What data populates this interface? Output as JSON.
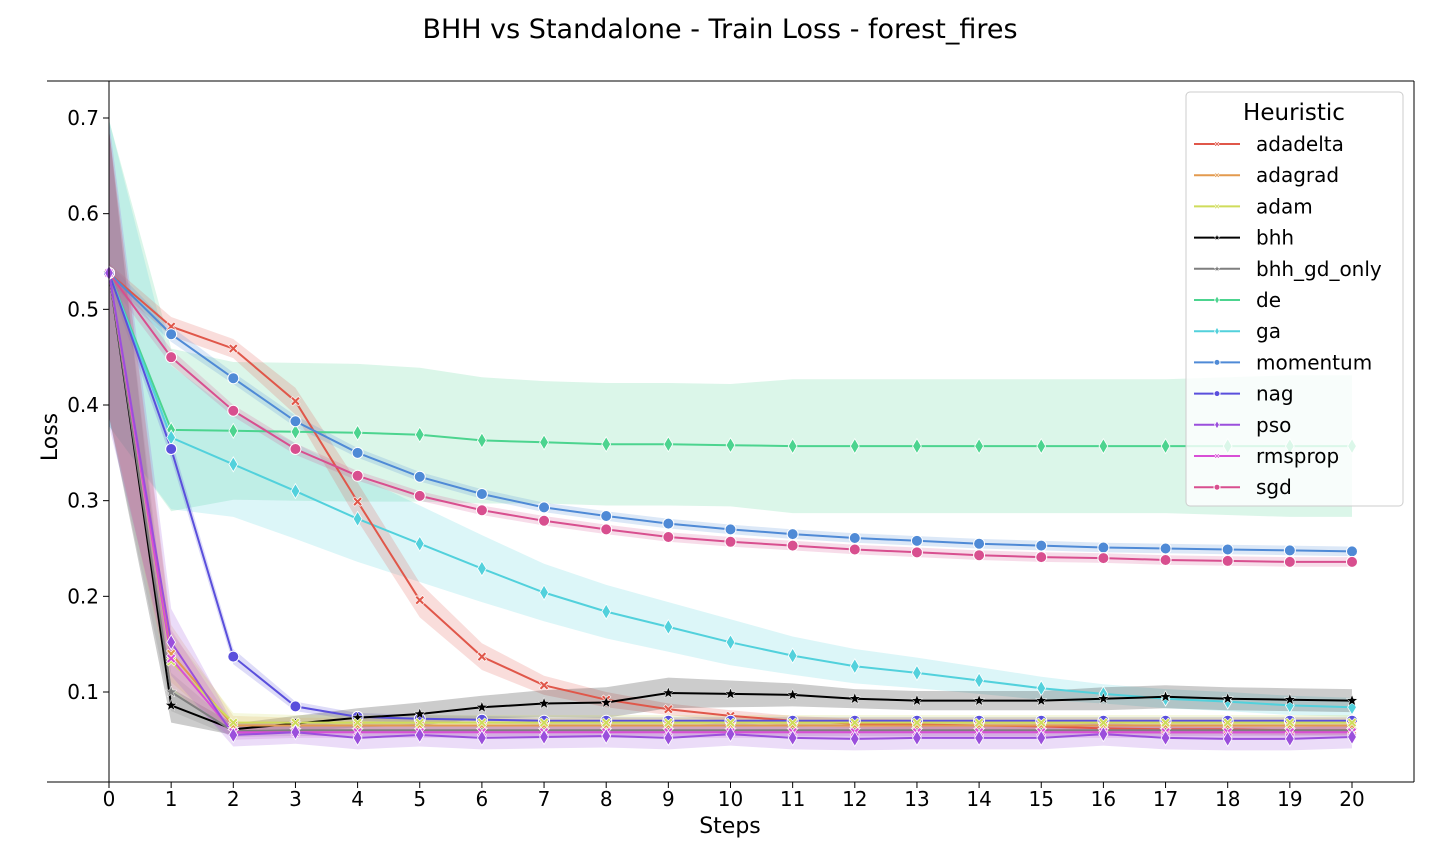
{
  "chart_data": {
    "type": "line",
    "title": "BHH vs Standalone - Train Loss - forest_fires",
    "xlabel": "Steps",
    "ylabel": "Loss",
    "xlim": [
      -1,
      21
    ],
    "ylim": [
      -0.005,
      0.735
    ],
    "x": [
      0,
      1,
      2,
      3,
      4,
      5,
      6,
      7,
      8,
      9,
      10,
      11,
      12,
      13,
      14,
      15,
      16,
      17,
      18,
      19,
      20
    ],
    "y_ticks": [
      "0.1",
      "0.2",
      "0.3",
      "0.4",
      "0.5",
      "0.6",
      "0.7"
    ],
    "y_tick_values": [
      0.1,
      0.2,
      0.3,
      0.4,
      0.5,
      0.6,
      0.7
    ],
    "x_ticks": [
      "0",
      "1",
      "2",
      "3",
      "4",
      "5",
      "6",
      "7",
      "8",
      "9",
      "10",
      "11",
      "12",
      "13",
      "14",
      "15",
      "16",
      "17",
      "18",
      "19",
      "20"
    ],
    "grid": false,
    "legend": {
      "title": "Heuristic",
      "placement": "top-right"
    },
    "series": [
      {
        "name": "adadelta",
        "color": "#e0574a",
        "marker": "x",
        "values": [
          0.538,
          0.482,
          0.459,
          0.404,
          0.299,
          0.196,
          0.137,
          0.107,
          0.092,
          0.082,
          0.075,
          0.07,
          0.067,
          0.066,
          0.065,
          0.064,
          0.062,
          0.061,
          0.061,
          0.06,
          0.06
        ],
        "band": [
          0.01,
          0.01,
          0.01,
          0.014,
          0.02,
          0.018,
          0.014,
          0.01,
          0.008,
          0.006,
          0.006,
          0.005,
          0.005,
          0.005,
          0.005,
          0.005,
          0.005,
          0.005,
          0.005,
          0.005,
          0.005
        ]
      },
      {
        "name": "adagrad",
        "color": "#e39a4f",
        "marker": "x",
        "values": [
          0.538,
          0.14,
          0.065,
          0.065,
          0.065,
          0.065,
          0.065,
          0.065,
          0.065,
          0.065,
          0.065,
          0.065,
          0.065,
          0.065,
          0.065,
          0.065,
          0.065,
          0.065,
          0.065,
          0.065,
          0.065
        ],
        "band": [
          0.15,
          0.03,
          0.01,
          0.008,
          0.008,
          0.008,
          0.008,
          0.008,
          0.008,
          0.008,
          0.008,
          0.008,
          0.008,
          0.008,
          0.008,
          0.008,
          0.008,
          0.008,
          0.008,
          0.008,
          0.008
        ]
      },
      {
        "name": "adam",
        "color": "#cfdc5b",
        "marker": "x",
        "values": [
          0.538,
          0.132,
          0.068,
          0.068,
          0.068,
          0.068,
          0.068,
          0.068,
          0.068,
          0.068,
          0.068,
          0.068,
          0.068,
          0.068,
          0.068,
          0.068,
          0.068,
          0.068,
          0.068,
          0.068,
          0.068
        ],
        "band": [
          0.15,
          0.03,
          0.01,
          0.008,
          0.008,
          0.008,
          0.008,
          0.008,
          0.008,
          0.008,
          0.008,
          0.008,
          0.008,
          0.008,
          0.008,
          0.008,
          0.008,
          0.008,
          0.008,
          0.008,
          0.008
        ]
      },
      {
        "name": "bhh",
        "color": "#000000",
        "marker": "star",
        "values": [
          0.538,
          0.086,
          0.061,
          0.067,
          0.073,
          0.077,
          0.084,
          0.088,
          0.089,
          0.099,
          0.098,
          0.097,
          0.093,
          0.091,
          0.091,
          0.091,
          0.093,
          0.095,
          0.093,
          0.092,
          0.091
        ],
        "band": [
          0.15,
          0.018,
          0.006,
          0.008,
          0.01,
          0.012,
          0.012,
          0.014,
          0.016,
          0.016,
          0.014,
          0.012,
          0.01,
          0.01,
          0.01,
          0.01,
          0.012,
          0.012,
          0.012,
          0.012,
          0.012
        ]
      },
      {
        "name": "bhh_gd_only",
        "color": "#7f7f7f",
        "marker": "star",
        "values": [
          0.538,
          0.1,
          0.059,
          0.06,
          0.06,
          0.06,
          0.06,
          0.06,
          0.06,
          0.06,
          0.06,
          0.06,
          0.06,
          0.06,
          0.06,
          0.06,
          0.06,
          0.06,
          0.06,
          0.06,
          0.06
        ],
        "band": [
          0.15,
          0.02,
          0.006,
          0.006,
          0.006,
          0.006,
          0.006,
          0.006,
          0.006,
          0.006,
          0.006,
          0.006,
          0.006,
          0.006,
          0.006,
          0.006,
          0.006,
          0.006,
          0.006,
          0.006,
          0.006
        ]
      },
      {
        "name": "de",
        "color": "#4cd48f",
        "marker": "diamond",
        "values": [
          0.538,
          0.374,
          0.373,
          0.372,
          0.371,
          0.369,
          0.363,
          0.361,
          0.359,
          0.359,
          0.358,
          0.357,
          0.357,
          0.357,
          0.357,
          0.357,
          0.357,
          0.357,
          0.357,
          0.357,
          0.357
        ],
        "band": [
          0.16,
          0.085,
          0.072,
          0.072,
          0.072,
          0.07,
          0.066,
          0.064,
          0.064,
          0.064,
          0.064,
          0.07,
          0.07,
          0.07,
          0.07,
          0.07,
          0.07,
          0.07,
          0.072,
          0.074,
          0.074
        ]
      },
      {
        "name": "ga",
        "color": "#52d1dc",
        "marker": "diamond",
        "values": [
          0.538,
          0.366,
          0.338,
          0.31,
          0.281,
          0.255,
          0.229,
          0.204,
          0.184,
          0.168,
          0.152,
          0.138,
          0.127,
          0.12,
          0.112,
          0.104,
          0.098,
          0.093,
          0.09,
          0.086,
          0.084
        ],
        "band": [
          0.16,
          0.075,
          0.055,
          0.05,
          0.045,
          0.04,
          0.035,
          0.03,
          0.028,
          0.026,
          0.024,
          0.02,
          0.018,
          0.016,
          0.014,
          0.012,
          0.01,
          0.01,
          0.01,
          0.01,
          0.01
        ]
      },
      {
        "name": "momentum",
        "color": "#4f8ad6",
        "marker": "circle",
        "values": [
          0.538,
          0.474,
          0.428,
          0.383,
          0.35,
          0.325,
          0.307,
          0.293,
          0.284,
          0.276,
          0.27,
          0.265,
          0.261,
          0.258,
          0.255,
          0.253,
          0.251,
          0.25,
          0.249,
          0.248,
          0.247
        ],
        "band": [
          0.01,
          0.008,
          0.006,
          0.006,
          0.005,
          0.005,
          0.005,
          0.005,
          0.005,
          0.005,
          0.005,
          0.005,
          0.005,
          0.005,
          0.005,
          0.005,
          0.005,
          0.005,
          0.005,
          0.005,
          0.005
        ]
      },
      {
        "name": "nag",
        "color": "#5a4fdc",
        "marker": "circle",
        "values": [
          0.538,
          0.354,
          0.137,
          0.085,
          0.074,
          0.072,
          0.071,
          0.07,
          0.07,
          0.07,
          0.07,
          0.07,
          0.07,
          0.07,
          0.07,
          0.07,
          0.07,
          0.07,
          0.07,
          0.07,
          0.07
        ],
        "band": [
          0.01,
          0.01,
          0.008,
          0.005,
          0.004,
          0.004,
          0.004,
          0.004,
          0.004,
          0.004,
          0.004,
          0.004,
          0.004,
          0.004,
          0.004,
          0.004,
          0.004,
          0.004,
          0.004,
          0.004,
          0.004
        ]
      },
      {
        "name": "pso",
        "color": "#9b4fdc",
        "marker": "diamond",
        "values": [
          0.538,
          0.152,
          0.055,
          0.058,
          0.052,
          0.055,
          0.052,
          0.053,
          0.054,
          0.052,
          0.056,
          0.052,
          0.051,
          0.052,
          0.052,
          0.052,
          0.056,
          0.052,
          0.051,
          0.051,
          0.053
        ],
        "band": [
          0.16,
          0.035,
          0.012,
          0.012,
          0.012,
          0.012,
          0.012,
          0.012,
          0.012,
          0.012,
          0.012,
          0.012,
          0.012,
          0.012,
          0.012,
          0.012,
          0.012,
          0.012,
          0.012,
          0.012,
          0.012
        ]
      },
      {
        "name": "rmsprop",
        "color": "#d84fd6",
        "marker": "x",
        "values": [
          0.538,
          0.135,
          0.058,
          0.058,
          0.058,
          0.058,
          0.058,
          0.058,
          0.058,
          0.058,
          0.058,
          0.058,
          0.058,
          0.058,
          0.058,
          0.058,
          0.058,
          0.058,
          0.058,
          0.058,
          0.058
        ],
        "band": [
          0.15,
          0.03,
          0.008,
          0.006,
          0.006,
          0.006,
          0.006,
          0.006,
          0.006,
          0.006,
          0.006,
          0.006,
          0.006,
          0.006,
          0.006,
          0.006,
          0.006,
          0.006,
          0.006,
          0.006,
          0.006
        ]
      },
      {
        "name": "sgd",
        "color": "#d84f8f",
        "marker": "circle",
        "values": [
          0.538,
          0.45,
          0.394,
          0.354,
          0.326,
          0.305,
          0.29,
          0.279,
          0.27,
          0.262,
          0.257,
          0.253,
          0.249,
          0.246,
          0.243,
          0.241,
          0.24,
          0.238,
          0.237,
          0.236,
          0.236
        ],
        "band": [
          0.01,
          0.008,
          0.006,
          0.006,
          0.005,
          0.005,
          0.005,
          0.005,
          0.005,
          0.005,
          0.005,
          0.005,
          0.005,
          0.005,
          0.005,
          0.005,
          0.005,
          0.005,
          0.005,
          0.005,
          0.005
        ]
      }
    ]
  }
}
